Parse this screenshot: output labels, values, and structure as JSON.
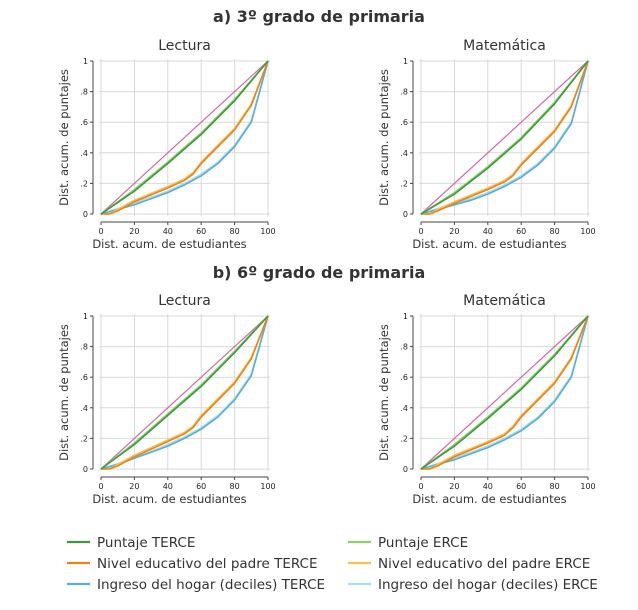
{
  "sections": [
    {
      "title": "a) 3º grado de primaria"
    },
    {
      "title": "b) 6º grado de primaria"
    }
  ],
  "panels": [
    {
      "title": "Lectura"
    },
    {
      "title": "Matemática"
    },
    {
      "title": "Lectura"
    },
    {
      "title": "Matemática"
    }
  ],
  "axes": {
    "xlabel": "Dist. acum. de estudiantes",
    "ylabel": "Dist. acum. de puntajes",
    "xticks": [
      "0",
      "20",
      "40",
      "60",
      "80",
      "100"
    ],
    "yticks": [
      "0",
      ".2",
      ".4",
      ".6",
      ".8",
      "1"
    ]
  },
  "legend": [
    {
      "label": "Puntaje TERCE",
      "color": "#3d9a3d"
    },
    {
      "label": "Nivel educativo del padre TERCE",
      "color": "#e8841c"
    },
    {
      "label": "Ingreso del hogar (deciles) TERCE",
      "color": "#5aaed0"
    },
    {
      "label": "Puntaje ERCE",
      "color": "#8fcf70"
    },
    {
      "label": "Nivel educativo del padre ERCE",
      "color": "#f5c25a"
    },
    {
      "label": "Ingreso del hogar (deciles) ERCE",
      "color": "#a8dcee"
    }
  ],
  "chart_data": [
    {
      "type": "line",
      "title": "Lectura",
      "section": "a) 3º grado de primaria",
      "xlabel": "Dist. acum. de estudiantes",
      "ylabel": "Dist. acum. de puntajes",
      "xlim": [
        0,
        100
      ],
      "ylim": [
        0,
        1
      ],
      "grid": true,
      "equality_line_color": "#d06aa8",
      "series": [
        {
          "name": "Puntaje TERCE",
          "color": "#3d9a3d",
          "x": [
            0,
            20,
            40,
            60,
            80,
            100
          ],
          "y": [
            0,
            0.15,
            0.33,
            0.52,
            0.74,
            1
          ]
        },
        {
          "name": "Puntaje ERCE",
          "color": "#8fcf70",
          "x": [
            0,
            20,
            40,
            60,
            80,
            100
          ],
          "y": [
            0,
            0.16,
            0.34,
            0.53,
            0.75,
            1
          ]
        },
        {
          "name": "Nivel educativo del padre TERCE",
          "color": "#e8841c",
          "x": [
            0,
            5,
            10,
            20,
            40,
            50,
            55,
            60,
            80,
            90,
            100
          ],
          "y": [
            0,
            0,
            0.02,
            0.08,
            0.17,
            0.22,
            0.26,
            0.33,
            0.55,
            0.71,
            1
          ]
        },
        {
          "name": "Nivel educativo del padre ERCE",
          "color": "#f5c25a",
          "x": [
            0,
            5,
            10,
            20,
            40,
            50,
            55,
            60,
            80,
            90,
            100
          ],
          "y": [
            0,
            0,
            0.03,
            0.09,
            0.18,
            0.23,
            0.27,
            0.34,
            0.56,
            0.72,
            1
          ]
        },
        {
          "name": "Ingreso del hogar (deciles) TERCE",
          "color": "#5aaed0",
          "x": [
            0,
            10,
            20,
            30,
            40,
            50,
            60,
            70,
            80,
            90,
            100
          ],
          "y": [
            0,
            0.03,
            0.06,
            0.1,
            0.14,
            0.19,
            0.25,
            0.33,
            0.44,
            0.6,
            1
          ]
        },
        {
          "name": "Ingreso del hogar (deciles) ERCE",
          "color": "#a8dcee",
          "x": [
            0,
            10,
            20,
            30,
            40,
            50,
            60,
            70,
            80,
            90,
            100
          ],
          "y": [
            0,
            0.035,
            0.07,
            0.11,
            0.15,
            0.2,
            0.26,
            0.34,
            0.45,
            0.61,
            1
          ]
        }
      ]
    },
    {
      "type": "line",
      "title": "Matemática",
      "section": "a) 3º grado de primaria",
      "xlabel": "Dist. acum. de estudiantes",
      "ylabel": "Dist. acum. de puntajes",
      "xlim": [
        0,
        100
      ],
      "ylim": [
        0,
        1
      ],
      "grid": true,
      "equality_line_color": "#d06aa8",
      "series": [
        {
          "name": "Puntaje TERCE",
          "color": "#3d9a3d",
          "x": [
            0,
            20,
            40,
            60,
            80,
            100
          ],
          "y": [
            0,
            0.13,
            0.3,
            0.49,
            0.72,
            1
          ]
        },
        {
          "name": "Puntaje ERCE",
          "color": "#8fcf70",
          "x": [
            0,
            20,
            40,
            60,
            80,
            100
          ],
          "y": [
            0,
            0.14,
            0.31,
            0.5,
            0.73,
            1
          ]
        },
        {
          "name": "Nivel educativo del padre TERCE",
          "color": "#e8841c",
          "x": [
            0,
            5,
            10,
            20,
            40,
            50,
            55,
            60,
            80,
            90,
            100
          ],
          "y": [
            0,
            0,
            0.02,
            0.07,
            0.16,
            0.21,
            0.25,
            0.32,
            0.54,
            0.7,
            1
          ]
        },
        {
          "name": "Nivel educativo del padre ERCE",
          "color": "#f5c25a",
          "x": [
            0,
            5,
            10,
            20,
            40,
            50,
            55,
            60,
            80,
            90,
            100
          ],
          "y": [
            0,
            0,
            0.03,
            0.08,
            0.17,
            0.22,
            0.26,
            0.33,
            0.55,
            0.71,
            1
          ]
        },
        {
          "name": "Ingreso del hogar (deciles) TERCE",
          "color": "#5aaed0",
          "x": [
            0,
            10,
            20,
            30,
            40,
            50,
            60,
            70,
            80,
            90,
            100
          ],
          "y": [
            0,
            0.03,
            0.06,
            0.09,
            0.13,
            0.18,
            0.24,
            0.32,
            0.43,
            0.59,
            1
          ]
        },
        {
          "name": "Ingreso del hogar (deciles) ERCE",
          "color": "#a8dcee",
          "x": [
            0,
            10,
            20,
            30,
            40,
            50,
            60,
            70,
            80,
            90,
            100
          ],
          "y": [
            0,
            0.035,
            0.07,
            0.1,
            0.14,
            0.19,
            0.25,
            0.33,
            0.44,
            0.6,
            1
          ]
        }
      ]
    },
    {
      "type": "line",
      "title": "Lectura",
      "section": "b) 6º grado de primaria",
      "xlabel": "Dist. acum. de estudiantes",
      "ylabel": "Dist. acum. de puntajes",
      "xlim": [
        0,
        100
      ],
      "ylim": [
        0,
        1
      ],
      "grid": true,
      "equality_line_color": "#d06aa8",
      "series": [
        {
          "name": "Puntaje TERCE",
          "color": "#3d9a3d",
          "x": [
            0,
            20,
            40,
            60,
            80,
            100
          ],
          "y": [
            0,
            0.16,
            0.35,
            0.54,
            0.76,
            1
          ]
        },
        {
          "name": "Puntaje ERCE",
          "color": "#8fcf70",
          "x": [
            0,
            20,
            40,
            60,
            80,
            100
          ],
          "y": [
            0,
            0.17,
            0.36,
            0.55,
            0.77,
            1
          ]
        },
        {
          "name": "Nivel educativo del padre TERCE",
          "color": "#e8841c",
          "x": [
            0,
            5,
            10,
            20,
            40,
            50,
            55,
            60,
            80,
            90,
            100
          ],
          "y": [
            0,
            0,
            0.02,
            0.08,
            0.18,
            0.23,
            0.27,
            0.34,
            0.56,
            0.72,
            1
          ]
        },
        {
          "name": "Nivel educativo del padre ERCE",
          "color": "#f5c25a",
          "x": [
            0,
            5,
            10,
            20,
            40,
            50,
            55,
            60,
            80,
            90,
            100
          ],
          "y": [
            0,
            0,
            0.03,
            0.09,
            0.19,
            0.24,
            0.28,
            0.35,
            0.57,
            0.73,
            1
          ]
        },
        {
          "name": "Ingreso del hogar (deciles) TERCE",
          "color": "#5aaed0",
          "x": [
            0,
            10,
            20,
            30,
            40,
            50,
            60,
            70,
            80,
            90,
            100
          ],
          "y": [
            0,
            0.03,
            0.07,
            0.11,
            0.15,
            0.2,
            0.26,
            0.34,
            0.45,
            0.61,
            1
          ]
        },
        {
          "name": "Ingreso del hogar (deciles) ERCE",
          "color": "#a8dcee",
          "x": [
            0,
            10,
            20,
            30,
            40,
            50,
            60,
            70,
            80,
            90,
            100
          ],
          "y": [
            0,
            0.035,
            0.075,
            0.115,
            0.16,
            0.21,
            0.27,
            0.35,
            0.46,
            0.62,
            1
          ]
        }
      ]
    },
    {
      "type": "line",
      "title": "Matemática",
      "section": "b) 6º grado de primaria",
      "xlabel": "Dist. acum. de estudiantes",
      "ylabel": "Dist. acum. de puntajes",
      "xlim": [
        0,
        100
      ],
      "ylim": [
        0,
        1
      ],
      "grid": true,
      "equality_line_color": "#d06aa8",
      "series": [
        {
          "name": "Puntaje TERCE",
          "color": "#3d9a3d",
          "x": [
            0,
            20,
            40,
            60,
            80,
            100
          ],
          "y": [
            0,
            0.15,
            0.33,
            0.52,
            0.74,
            1
          ]
        },
        {
          "name": "Puntaje ERCE",
          "color": "#8fcf70",
          "x": [
            0,
            20,
            40,
            60,
            80,
            100
          ],
          "y": [
            0,
            0.16,
            0.34,
            0.53,
            0.75,
            1
          ]
        },
        {
          "name": "Nivel educativo del padre TERCE",
          "color": "#e8841c",
          "x": [
            0,
            5,
            10,
            20,
            40,
            50,
            55,
            60,
            80,
            90,
            100
          ],
          "y": [
            0,
            0,
            0.02,
            0.08,
            0.17,
            0.22,
            0.27,
            0.34,
            0.56,
            0.72,
            1
          ]
        },
        {
          "name": "Nivel educativo del padre ERCE",
          "color": "#f5c25a",
          "x": [
            0,
            5,
            10,
            20,
            40,
            50,
            55,
            60,
            80,
            90,
            100
          ],
          "y": [
            0,
            0,
            0.03,
            0.09,
            0.18,
            0.23,
            0.28,
            0.35,
            0.57,
            0.73,
            1
          ]
        },
        {
          "name": "Ingreso del hogar (deciles) TERCE",
          "color": "#5aaed0",
          "x": [
            0,
            10,
            20,
            30,
            40,
            50,
            60,
            70,
            80,
            90,
            100
          ],
          "y": [
            0,
            0.03,
            0.06,
            0.1,
            0.14,
            0.19,
            0.25,
            0.33,
            0.44,
            0.6,
            1
          ]
        },
        {
          "name": "Ingreso del hogar (deciles) ERCE",
          "color": "#a8dcee",
          "x": [
            0,
            10,
            20,
            30,
            40,
            50,
            60,
            70,
            80,
            90,
            100
          ],
          "y": [
            0,
            0.035,
            0.07,
            0.11,
            0.15,
            0.2,
            0.26,
            0.34,
            0.45,
            0.61,
            1
          ]
        }
      ]
    }
  ]
}
